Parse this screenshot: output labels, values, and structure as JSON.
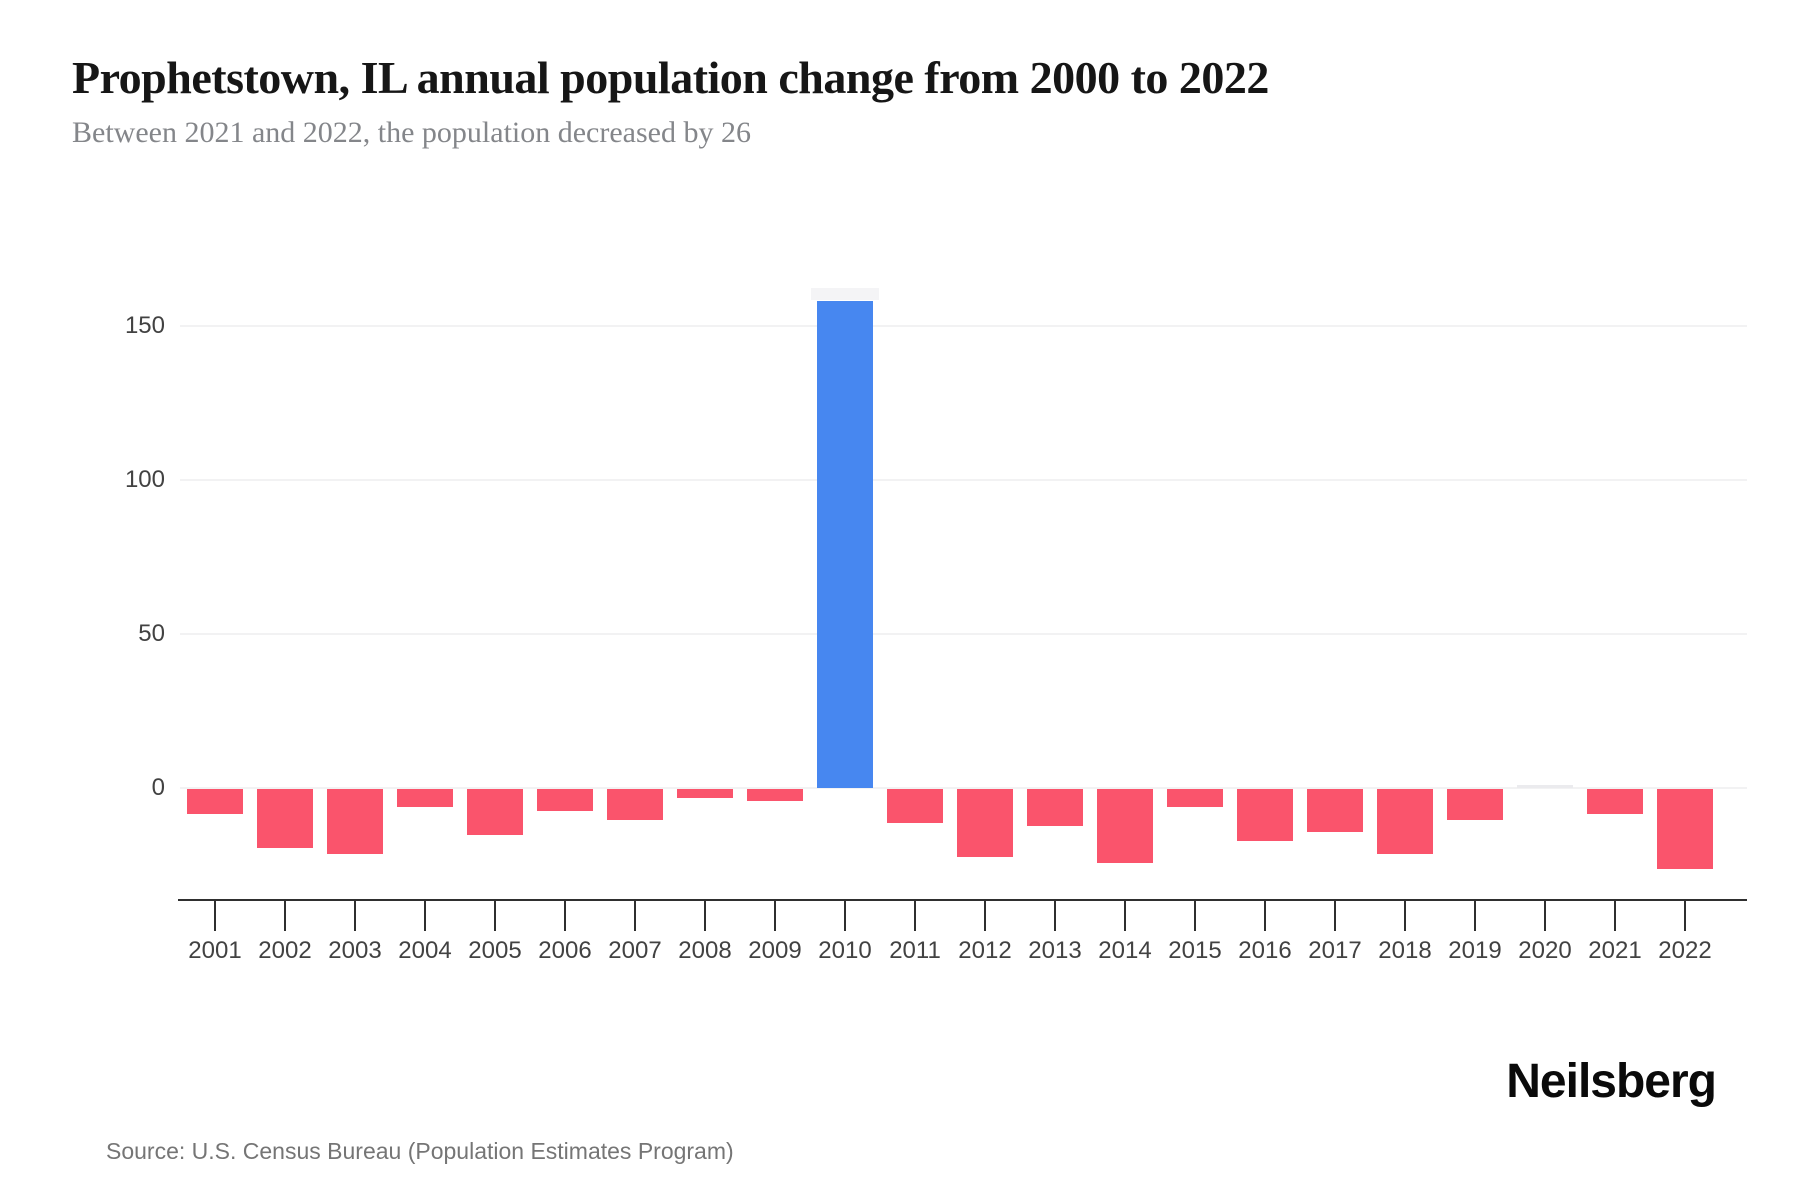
{
  "header": {
    "title": "Prophetstown, IL annual population change from 2000 to 2022",
    "subtitle": "Between 2021 and 2022, the population decreased by 26"
  },
  "footer": {
    "source": "Source: U.S. Census Bureau (Population Estimates Program)",
    "brand": "Neilsberg"
  },
  "chart_data": {
    "type": "bar",
    "title": "Prophetstown, IL annual population change from 2000 to 2022",
    "subtitle": "Between 2021 and 2022, the population decreased by 26",
    "xlabel": "",
    "ylabel": "",
    "categories": [
      "2001",
      "2002",
      "2003",
      "2004",
      "2005",
      "2006",
      "2007",
      "2008",
      "2009",
      "2010",
      "2011",
      "2012",
      "2013",
      "2014",
      "2015",
      "2016",
      "2017",
      "2018",
      "2019",
      "2020",
      "2021",
      "2022"
    ],
    "values": [
      -8,
      -19,
      -21,
      -6,
      -15,
      -7,
      -10,
      -3,
      -4,
      158,
      -11,
      -22,
      -12,
      -24,
      -6,
      -17,
      -14,
      -21,
      -10,
      0,
      -8,
      -26
    ],
    "yticks": [
      0,
      50,
      100,
      150
    ],
    "ylim": [
      -36,
      168
    ],
    "grid": true,
    "legend_position": "none",
    "colors": {
      "positive": "#4787F0",
      "negative": "#FA546C",
      "zero_bar": "#EBEBEE",
      "gridline": "#F2F2F3",
      "axis": "#2F2F2F",
      "highlight_cap": "#F4F4F6"
    }
  }
}
